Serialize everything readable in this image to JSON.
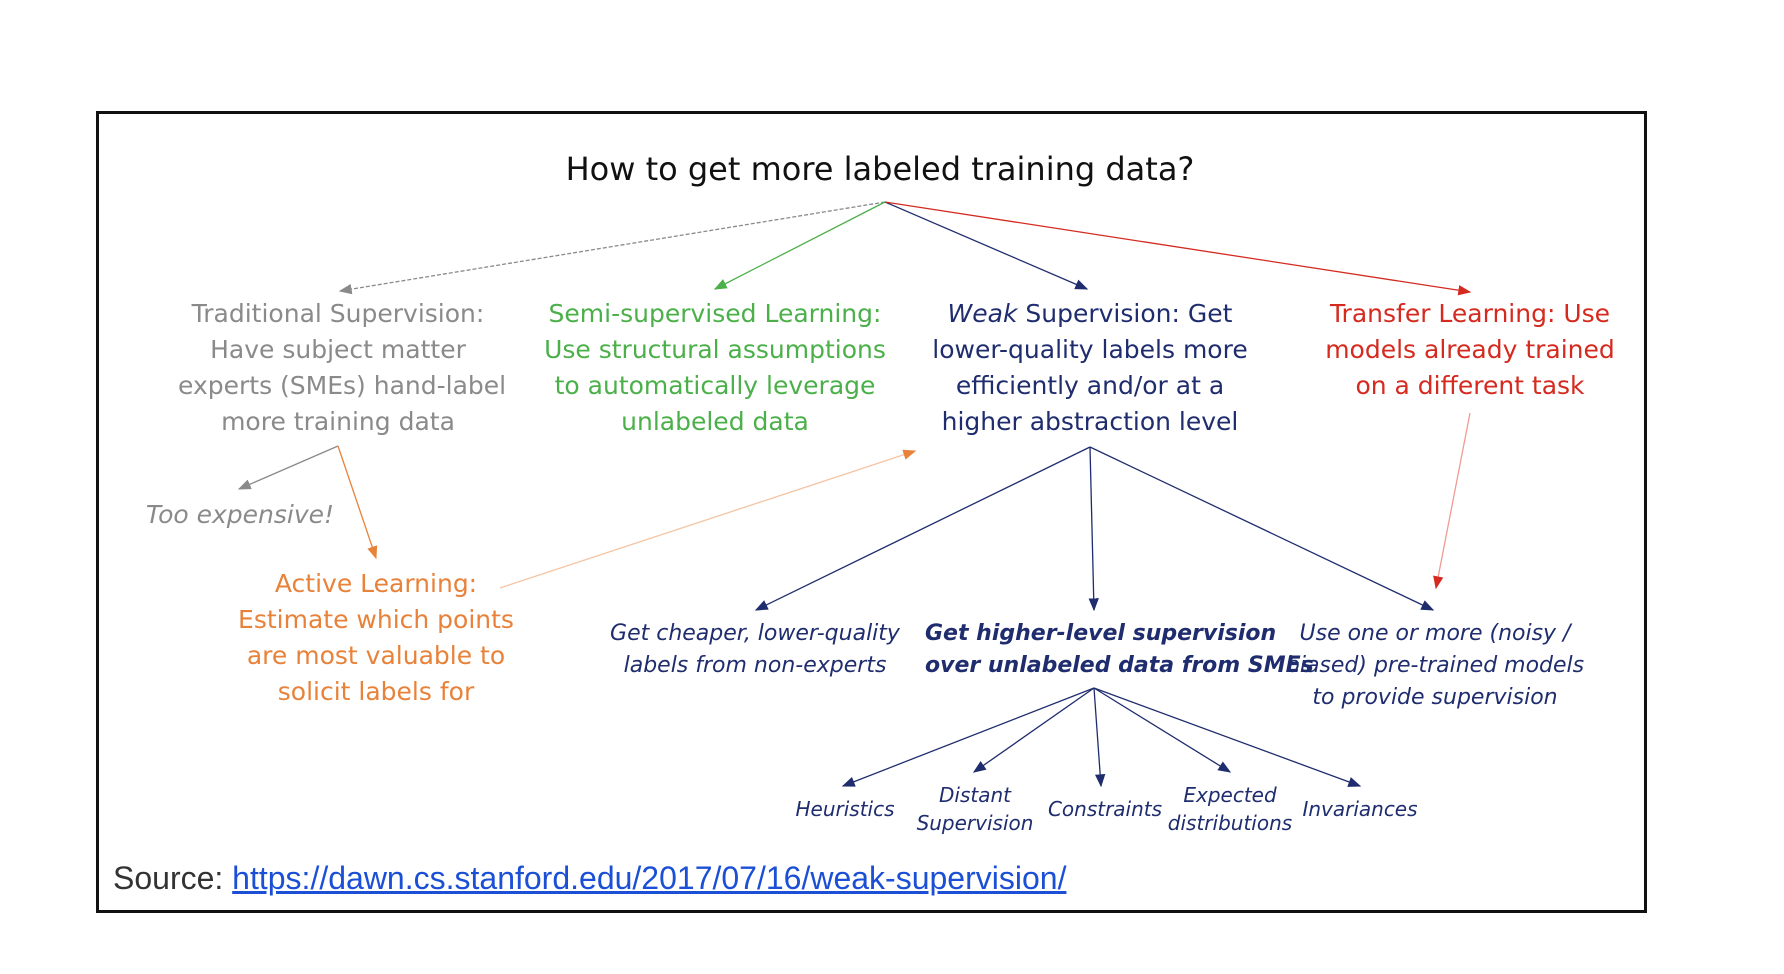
{
  "title": "How to get more labeled training data?",
  "branches": {
    "traditional": {
      "heading": "Traditional Supervision:",
      "lines": [
        "Have subject matter",
        "experts (SMEs) hand-label",
        "more training data"
      ],
      "color": "#8a8a8a"
    },
    "semi": {
      "heading": "Semi-supervised Learning:",
      "lines": [
        "Use structural assumptions",
        "to automatically leverage",
        "unlabeled data"
      ],
      "color": "#4cb04a"
    },
    "weak": {
      "heading_italic": "Weak",
      "heading_rest": " Supervision:",
      "heading_tail": " Get",
      "lines": [
        "lower-quality labels more",
        "efficiently and/or at a",
        "higher abstraction level"
      ],
      "color": "#1f2d6e"
    },
    "transfer": {
      "heading": "Transfer Learning:",
      "heading_tail": " Use",
      "lines": [
        "models already trained",
        "on a different task"
      ],
      "color": "#d42a1f"
    }
  },
  "too_expensive": "Too expensive!",
  "active_learning": {
    "heading": "Active Learning:",
    "lines": [
      "Estimate which points",
      "are most valuable to",
      "solicit labels for"
    ],
    "color": "#e8823a"
  },
  "weak_children": {
    "cheaper": [
      "Get cheaper, lower-quality",
      "labels from non-experts"
    ],
    "higher": [
      "Get higher-level supervision",
      "over unlabeled data from SMEs"
    ],
    "pretrained": [
      "Use one or more (noisy /",
      "biased) pre-trained models",
      "to provide supervision"
    ]
  },
  "leaves": {
    "heuristics": "Heuristics",
    "distant": [
      "Distant",
      "Supervision"
    ],
    "constraints": "Constraints",
    "expected": [
      "Expected",
      "distributions"
    ],
    "invariances": "Invariances"
  },
  "source": {
    "label": "Source: ",
    "url_text": "https://dawn.cs.stanford.edu/2017/07/16/weak-supervision/"
  }
}
